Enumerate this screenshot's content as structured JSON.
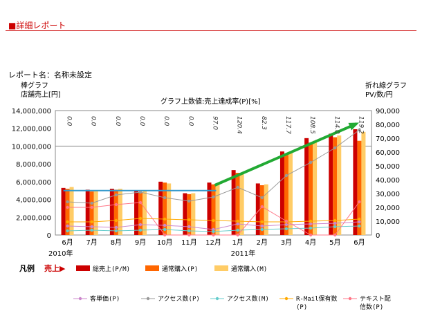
{
  "header": {
    "title": "■詳細レポート"
  },
  "report": {
    "name_label": "レポート名：名称未設定"
  },
  "axes": {
    "left_title_1": "棒グラフ",
    "left_title_2": "店舗売上[円]",
    "right_title_1": "折れ線グラフ",
    "right_title_2": "PV/数/円",
    "chart_caption": "グラフ上数値:売上達成率(P)[%]"
  },
  "colors": {
    "bar_total": "#cc0000",
    "bar_normal_p": "#ff6600",
    "bar_normal_m": "#ffcc66",
    "line_unit_price": "#cc88cc",
    "line_access_p": "#999999",
    "line_access_m": "#66cccc",
    "line_rmail": "#ffaa00",
    "line_text": "#ff7788",
    "reference_line": "#3399cc",
    "trend_arrow": "#22aa33"
  },
  "chart_data": {
    "type": "bar",
    "categories": [
      "6月",
      "7月",
      "8月",
      "9月",
      "10月",
      "11月",
      "12月",
      "1月",
      "2月",
      "3月",
      "4月",
      "5月",
      "6月"
    ],
    "year_labels": [
      "2010年",
      "2011年"
    ],
    "ylim": [
      0,
      14000000
    ],
    "y_ticks": [
      "0",
      "2,000,000",
      "4,000,000",
      "6,000,000",
      "8,000,000",
      "10,000,000",
      "12,000,000",
      "14,000,000"
    ],
    "y2lim": [
      0,
      90000
    ],
    "y2_ticks": [
      "0",
      "10,000",
      "20,000",
      "30,000",
      "40,000",
      "50,000",
      "60,000",
      "70,000",
      "80,000",
      "90,000"
    ],
    "achievement_rates": [
      "0.0",
      "0.0",
      "0.0",
      "0.0",
      "0.0",
      "0.0",
      "97.0",
      "120.4",
      "82.3",
      "117.7",
      "108.5",
      "114.0",
      "119.2"
    ],
    "series": [
      {
        "name": "総売上(P/M)",
        "values": [
          5300000,
          5100000,
          5200000,
          5000000,
          6000000,
          4700000,
          5900000,
          7300000,
          5800000,
          9400000,
          10900000,
          11400000,
          11900000
        ]
      },
      {
        "name": "通常購入(P)",
        "values": [
          5200000,
          4900000,
          5100000,
          4800000,
          5900000,
          4600000,
          5700000,
          7000000,
          5600000,
          9000000,
          10400000,
          11000000,
          10600000
        ]
      },
      {
        "name": "通常購入(M)",
        "values": [
          5400000,
          5000000,
          5200000,
          5000000,
          5800000,
          4700000,
          5800000,
          6900000,
          5700000,
          9200000,
          10600000,
          11200000,
          11600000
        ]
      }
    ],
    "line_series": [
      {
        "name": "客単価(P)",
        "values": [
          6500,
          6000,
          5500,
          7500,
          7000,
          6000,
          4000,
          8000,
          6500,
          7500,
          8000,
          8500,
          9500
        ]
      },
      {
        "name": "アクセス数(P)",
        "values": [
          24000,
          23000,
          29000,
          31000,
          27000,
          24500,
          27500,
          34500,
          27000,
          43000,
          52500,
          63000,
          76000
        ]
      },
      {
        "name": "アクセス数(M)",
        "values": [
          3000,
          3500,
          3000,
          3500,
          4000,
          3000,
          2500,
          3500,
          4000,
          4500,
          5000,
          6000,
          6500
        ]
      },
      {
        "name": "R-Mail保有数(P)",
        "values": [
          9500,
          9500,
          10500,
          12000,
          11500,
          11000,
          10500,
          10000,
          9500,
          9500,
          10000,
          10500,
          11500
        ]
      },
      {
        "name": "テキスト配信数(P)",
        "values": [
          20000,
          20000,
          22000,
          23500,
          0,
          0,
          0,
          0,
          20500,
          10000,
          0,
          0,
          24000
        ]
      }
    ],
    "reference_line_value": 5000000,
    "legend_title": "凡例",
    "legend_sub": "売上▶"
  }
}
